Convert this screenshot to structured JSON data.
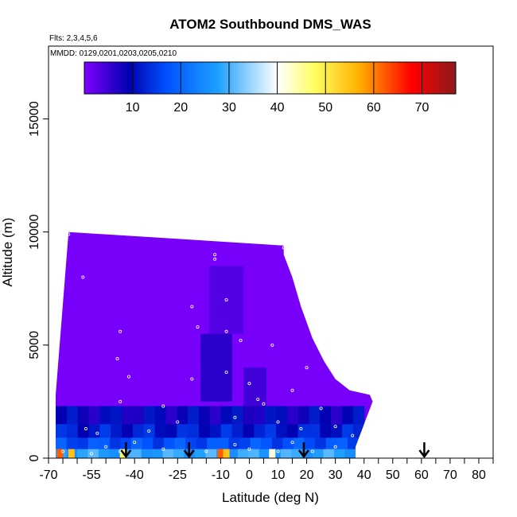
{
  "chart_data": {
    "type": "heatmap",
    "title": "ATOM2 Southbound DMS_WAS",
    "flights_label": "Flts: 2,3,4,5,6",
    "mmdd_label": "MMDD: 0129,0201,0203,0205,0210",
    "xlabel": "Latitude (deg N)",
    "ylabel": "Altitude (m)",
    "xlim": [
      -70,
      85
    ],
    "ylim": [
      0,
      18000
    ],
    "x_ticks": [
      -70,
      -55,
      -40,
      -25,
      -10,
      0,
      10,
      20,
      30,
      40,
      50,
      60,
      70,
      80
    ],
    "y_ticks": [
      0,
      5000,
      10000,
      15000
    ],
    "colorbar": {
      "range": [
        0,
        77
      ],
      "ticks": [
        10,
        20,
        30,
        40,
        50,
        60,
        70
      ],
      "colors": [
        "#7f00ff",
        "#0000b0",
        "#0050ff",
        "#1ea0ff",
        "#ffffff",
        "#ffff60",
        "#ffb000",
        "#ff0000",
        "#8b1a1a"
      ]
    },
    "domain_outline": [
      [
        -67.5,
        2800
      ],
      [
        -63,
        10000
      ],
      [
        12,
        9400
      ],
      [
        12,
        9000
      ],
      [
        15,
        8000
      ],
      [
        18,
        6700
      ],
      [
        22,
        5300
      ],
      [
        26,
        4300
      ],
      [
        30,
        3500
      ],
      [
        35,
        3000
      ],
      [
        42,
        2800
      ],
      [
        43,
        2500
      ],
      [
        40,
        1500
      ],
      [
        37,
        500
      ],
      [
        37,
        0
      ],
      [
        -67.5,
        0
      ]
    ],
    "dark_regions": [
      {
        "x": [
          -17,
          -6
        ],
        "y": [
          2500,
          5500
        ],
        "value": 8
      },
      {
        "x": [
          -14,
          -2
        ],
        "y": [
          5500,
          8500
        ],
        "value": 4
      },
      {
        "x": [
          -2,
          6
        ],
        "y": [
          2200,
          4000
        ],
        "value": 6
      }
    ],
    "layers": [
      {
        "y": [
          1500,
          2300
        ],
        "x": [
          -67.5,
          40
        ],
        "value": 9
      },
      {
        "y": [
          900,
          1500
        ],
        "x": [
          -67.5,
          40
        ],
        "value": 12
      },
      {
        "y": [
          400,
          900
        ],
        "x": [
          -67.5,
          38
        ],
        "value": 17
      },
      {
        "y": [
          0,
          400
        ],
        "x": [
          -67.5,
          37
        ],
        "value": 28
      }
    ],
    "surface_hotspots": [
      {
        "x": -66,
        "value": 62
      },
      {
        "x": -62,
        "value": 55
      },
      {
        "x": -44,
        "value": 48
      },
      {
        "x": -10,
        "value": 62
      },
      {
        "x": -8,
        "value": 55
      },
      {
        "x": 8,
        "value": 42
      }
    ],
    "sample_points": [
      [
        -63,
        9900
      ],
      [
        -58,
        8000
      ],
      [
        -45,
        5600
      ],
      [
        -46,
        4400
      ],
      [
        -42,
        3600
      ],
      [
        -45,
        2500
      ],
      [
        -57,
        1300
      ],
      [
        -53,
        1100
      ],
      [
        -35,
        1200
      ],
      [
        -20,
        6700
      ],
      [
        -18,
        5800
      ],
      [
        -12,
        9000
      ],
      [
        -12,
        8800
      ],
      [
        -8,
        7000
      ],
      [
        -8,
        5600
      ],
      [
        -8,
        3800
      ],
      [
        -3,
        5200
      ],
      [
        0,
        3300
      ],
      [
        3,
        2600
      ],
      [
        5,
        2400
      ],
      [
        8,
        5000
      ],
      [
        12,
        9300
      ],
      [
        15,
        3000
      ],
      [
        20,
        4000
      ],
      [
        25,
        2200
      ],
      [
        30,
        1400
      ],
      [
        36,
        1000
      ],
      [
        -30,
        2300
      ],
      [
        -20,
        3500
      ],
      [
        -25,
        1600
      ],
      [
        -5,
        1800
      ],
      [
        10,
        1600
      ],
      [
        18,
        1300
      ],
      [
        -40,
        700
      ],
      [
        -30,
        400
      ],
      [
        -15,
        300
      ],
      [
        0,
        400
      ],
      [
        10,
        300
      ],
      [
        22,
        300
      ],
      [
        30,
        500
      ],
      [
        -65,
        300
      ],
      [
        -55,
        200
      ],
      [
        -50,
        500
      ],
      [
        -45,
        300
      ],
      [
        -5,
        600
      ],
      [
        15,
        700
      ]
    ],
    "arrows_lat": [
      -43,
      -21,
      19,
      61
    ]
  }
}
